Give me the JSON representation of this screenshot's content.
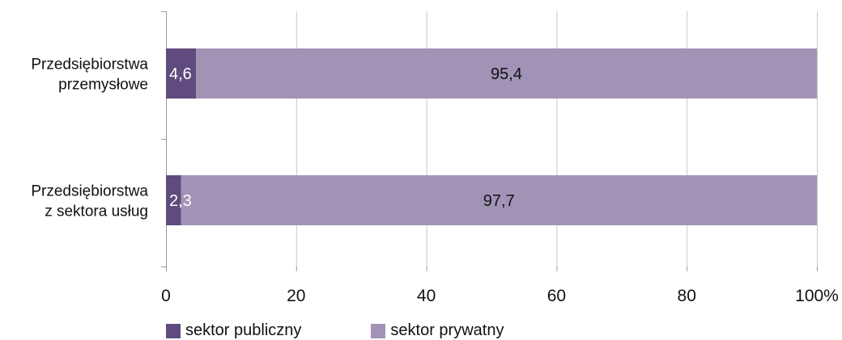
{
  "chart_data": {
    "type": "bar",
    "orientation": "horizontal",
    "stacked": true,
    "categories": [
      [
        "Przedsiębiorstwa",
        "przemysłowe"
      ],
      [
        "Przedsiębiorstwa",
        "z sektora usług"
      ]
    ],
    "series": [
      {
        "name": "sektor publiczny",
        "values": [
          4.6,
          2.3
        ],
        "value_labels": [
          "4,6",
          "2,3"
        ],
        "color": "#5f4b7e",
        "label_color": "#ffffff"
      },
      {
        "name": "sektor prywatny",
        "values": [
          95.4,
          97.7
        ],
        "value_labels": [
          "95,4",
          "97,7"
        ],
        "color": "#a193b6",
        "label_color": "#111111"
      }
    ],
    "xlim": [
      0,
      100
    ],
    "xticks": [
      0,
      20,
      40,
      60,
      80,
      100
    ],
    "xtick_labels": [
      "0",
      "20",
      "40",
      "60",
      "80",
      "100%"
    ],
    "grid": "vertical",
    "legend_position": "bottom-left"
  },
  "legend": {
    "public": {
      "label": "sektor publiczny",
      "color": "#5f4b7e"
    },
    "private": {
      "label": "sektor prywatny",
      "color": "#a193b6"
    }
  },
  "colors": {
    "gridline": "#c8c8c8",
    "axis": "#999999",
    "text": "#111111"
  }
}
